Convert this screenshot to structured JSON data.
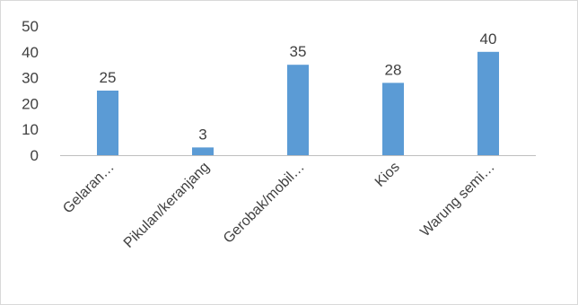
{
  "chart_data": {
    "type": "bar",
    "categories": [
      "Gelaran…",
      "Pikulan/keranjang",
      "Gerobak/mobil…",
      "Kios",
      "Warung semi…"
    ],
    "values": [
      25,
      3,
      35,
      28,
      40
    ],
    "data_labels": [
      "25",
      "3",
      "35",
      "28",
      "40"
    ],
    "ylim": [
      0,
      50
    ],
    "y_ticks": [
      0,
      10,
      20,
      30,
      40,
      50
    ],
    "title": "",
    "xlabel": "",
    "ylabel": "",
    "grid": false,
    "legend": "none",
    "bar_color": "#5b9bd5"
  }
}
